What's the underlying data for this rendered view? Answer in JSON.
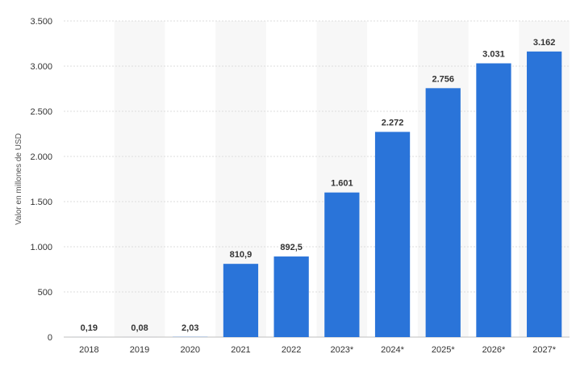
{
  "chart_data": {
    "type": "bar",
    "ylabel": "Valor en millones de USD",
    "xlabel": "",
    "title": "",
    "categories": [
      "2018",
      "2019",
      "2020",
      "2021",
      "2022",
      "2023*",
      "2024*",
      "2025*",
      "2026*",
      "2027*"
    ],
    "values": [
      0.19,
      0.08,
      2.03,
      810.9,
      892.5,
      1601,
      2272,
      2756,
      3031,
      3162
    ],
    "value_labels": [
      "0,19",
      "0,08",
      "2,03",
      "810,9",
      "892,5",
      "1.601",
      "2.272",
      "2.756",
      "3.031",
      "3.162"
    ],
    "ylim": [
      0,
      3500
    ],
    "y_ticks": [
      0,
      500,
      1000,
      1500,
      2000,
      2500,
      3000,
      3500
    ],
    "y_tick_labels": [
      "0",
      "500",
      "1.000",
      "1.500",
      "2.000",
      "2.500",
      "3.000",
      "3.500"
    ],
    "grid": true,
    "alternating_bands": true,
    "bar_color": "#2a74d9"
  }
}
